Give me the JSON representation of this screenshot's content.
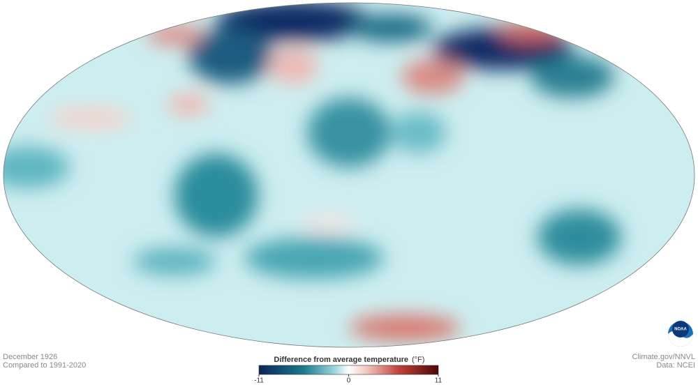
{
  "caption": {
    "date": "December 1926",
    "baseline": "Compared to 1991-2020"
  },
  "legend": {
    "title": "Difference from average temperature",
    "unit": "(°F)",
    "range": [
      -11,
      11
    ],
    "ticks": [
      -11,
      0,
      11
    ]
  },
  "credits": {
    "source": "Climate.gov/NNVL",
    "data": "Data: NCEI"
  },
  "logo": "NOAA"
}
